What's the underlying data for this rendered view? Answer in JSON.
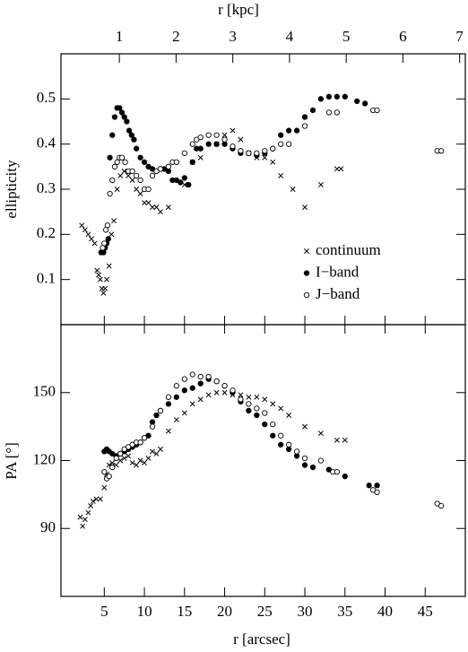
{
  "chart_data": [
    {
      "type": "scatter",
      "ylabel": "ellipticity",
      "x2label": "r [kpc]",
      "xlim": [
        -0.4,
        50
      ],
      "ylim": [
        0,
        0.6
      ],
      "yticks": [
        0.1,
        0.2,
        0.3,
        0.4,
        0.5
      ],
      "x2lim": [
        -0.03,
        7.1
      ],
      "x2ticks": [
        1,
        2,
        3,
        4,
        5,
        6,
        7
      ],
      "legend": "lower right",
      "series": [
        {
          "name": "continuum",
          "marker": "x",
          "x": [
            2.2,
            2.6,
            3,
            3.4,
            3.8,
            4.1,
            4.3,
            4.5,
            4.7,
            4.9,
            5.1,
            5.3,
            5.6,
            5.9,
            6.2,
            6.6,
            7,
            7.5,
            8,
            8.5,
            9,
            9.5,
            10,
            10.5,
            11,
            11.5,
            12,
            13,
            15,
            16,
            17,
            19,
            20,
            21,
            22,
            23,
            24,
            25,
            26,
            27,
            28.5,
            30,
            32,
            34,
            34.5
          ],
          "values": [
            0.22,
            0.21,
            0.2,
            0.19,
            0.18,
            0.12,
            0.11,
            0.1,
            0.08,
            0.07,
            0.08,
            0.1,
            0.13,
            0.2,
            0.23,
            0.3,
            0.33,
            0.34,
            0.33,
            0.32,
            0.3,
            0.29,
            0.27,
            0.27,
            0.26,
            0.26,
            0.25,
            0.26,
            0.31,
            0.36,
            0.37,
            0.4,
            0.42,
            0.43,
            0.41,
            0.38,
            0.37,
            0.37,
            0.36,
            0.33,
            0.3,
            0.26,
            0.31,
            0.345,
            0.345
          ]
        },
        {
          "name": "I−band",
          "marker": "filled",
          "x": [
            4.6,
            4.9,
            5.1,
            5.3,
            5.5,
            5.7,
            6.0,
            6.3,
            6.6,
            6.9,
            7.2,
            7.5,
            7.8,
            8.1,
            8.4,
            8.7,
            9,
            9.5,
            10,
            10.5,
            11,
            11.5,
            12,
            12.5,
            13,
            13.5,
            14,
            14.5,
            15,
            15.5,
            16,
            16.5,
            17,
            18,
            19,
            20,
            21,
            22,
            23,
            24,
            25,
            26,
            27,
            28,
            29,
            30,
            31,
            32,
            33,
            34,
            35,
            36.5,
            37.5
          ],
          "values": [
            0.16,
            0.16,
            0.17,
            0.18,
            0.19,
            0.37,
            0.42,
            0.46,
            0.48,
            0.48,
            0.47,
            0.46,
            0.45,
            0.43,
            0.42,
            0.41,
            0.39,
            0.37,
            0.36,
            0.35,
            0.345,
            0.34,
            0.345,
            0.345,
            0.34,
            0.32,
            0.32,
            0.315,
            0.325,
            0.31,
            0.36,
            0.39,
            0.39,
            0.4,
            0.4,
            0.4,
            0.39,
            0.38,
            0.38,
            0.375,
            0.38,
            0.39,
            0.42,
            0.43,
            0.43,
            0.46,
            0.475,
            0.5,
            0.505,
            0.505,
            0.505,
            0.495,
            0.49
          ]
        },
        {
          "name": "J−band",
          "marker": "open",
          "x": [
            4.8,
            5.0,
            5.2,
            5.4,
            5.7,
            6,
            6.3,
            6.6,
            6.9,
            7.2,
            7.6,
            8,
            8.5,
            9,
            9.5,
            10,
            10.5,
            11,
            11.5,
            12,
            13,
            13.5,
            14,
            15,
            16,
            16.5,
            17,
            18,
            19,
            20,
            21,
            22,
            23,
            24,
            25,
            26,
            27,
            28,
            30,
            33,
            34,
            38.5,
            39,
            46.5,
            47
          ],
          "values": [
            0.17,
            0.18,
            0.21,
            0.22,
            0.29,
            0.32,
            0.35,
            0.36,
            0.37,
            0.37,
            0.36,
            0.34,
            0.34,
            0.33,
            0.32,
            0.3,
            0.3,
            0.33,
            0.34,
            0.345,
            0.35,
            0.36,
            0.36,
            0.38,
            0.4,
            0.41,
            0.415,
            0.42,
            0.42,
            0.41,
            0.395,
            0.385,
            0.38,
            0.38,
            0.385,
            0.39,
            0.4,
            0.4,
            0.44,
            0.47,
            0.47,
            0.475,
            0.475,
            0.385,
            0.385
          ]
        }
      ]
    },
    {
      "type": "scatter",
      "ylabel": "PA [°]",
      "xlabel": "r [arcsec]",
      "xlim": [
        -0.4,
        50
      ],
      "xticks": [
        5,
        10,
        15,
        20,
        25,
        30,
        35,
        40,
        45
      ],
      "ylim": [
        60,
        180
      ],
      "yticks": [
        90,
        120,
        150
      ],
      "series": [
        {
          "marker": "x",
          "x": [
            2,
            2.3,
            2.6,
            3,
            3.3,
            3.6,
            4,
            4.5,
            5,
            5.3,
            5.6,
            6,
            6.5,
            7,
            7.5,
            8,
            8.5,
            9,
            9.5,
            10,
            10.5,
            11,
            11.5,
            12,
            13,
            14,
            15,
            16,
            17,
            18,
            19,
            20,
            21,
            22,
            23,
            24,
            25,
            26,
            27,
            28,
            30,
            32,
            34,
            35
          ],
          "values": [
            95,
            91,
            94,
            97,
            100,
            102,
            103,
            103,
            108,
            114,
            118,
            119,
            118,
            120,
            121,
            122,
            119,
            118,
            120,
            119,
            121,
            124,
            123,
            125,
            133,
            138,
            141,
            145,
            147,
            149,
            150,
            150,
            149,
            149,
            148,
            148,
            147,
            145,
            143,
            140,
            135,
            132,
            129,
            129
          ]
        },
        {
          "marker": "filled",
          "x": [
            5,
            5.3,
            5.6,
            6,
            6.5,
            7,
            7.5,
            8,
            8.5,
            9,
            9.5,
            10,
            10.5,
            11,
            11.5,
            12,
            13,
            14,
            15,
            16,
            17,
            18,
            19,
            20,
            21,
            22,
            23,
            24,
            25,
            26,
            27,
            28,
            29,
            30,
            31,
            33,
            35,
            38,
            39
          ],
          "values": [
            124,
            125,
            124,
            123,
            122,
            123,
            124,
            125,
            126,
            127,
            128,
            130,
            131,
            137,
            140,
            142,
            145,
            148,
            151,
            152,
            154,
            156,
            155,
            153,
            150,
            146,
            142,
            140,
            136,
            131,
            127,
            125,
            122,
            118,
            117,
            116,
            113,
            109,
            109
          ]
        },
        {
          "marker": "open",
          "x": [
            5,
            5.3,
            5.6,
            6,
            6.5,
            7,
            7.5,
            8,
            8.5,
            9,
            9.5,
            10,
            11,
            12,
            13,
            14,
            15,
            16,
            17,
            18,
            19,
            20,
            21,
            22,
            23,
            24,
            25,
            26,
            27,
            28,
            29,
            30,
            32,
            33.5,
            34,
            38.5,
            39,
            46.5,
            47
          ],
          "values": [
            115,
            112,
            113,
            117,
            121,
            123,
            125,
            126,
            127,
            128,
            128,
            130,
            135,
            142,
            148,
            153,
            156,
            158,
            157,
            157,
            155,
            153,
            151,
            147,
            145,
            143,
            141,
            136,
            131,
            127,
            124,
            121,
            120,
            115,
            115,
            107,
            106,
            101,
            100
          ]
        }
      ]
    }
  ]
}
